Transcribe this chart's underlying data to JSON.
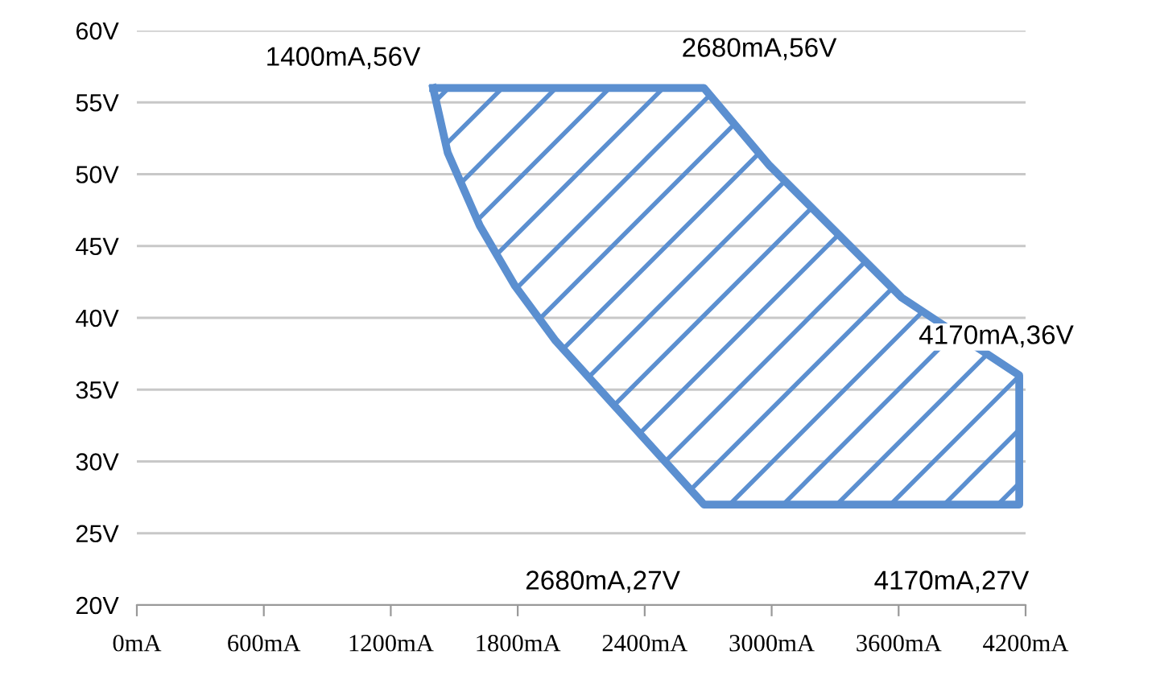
{
  "chart_data": {
    "type": "area",
    "x": [
      1400,
      2680,
      2990,
      3615,
      4170,
      4170,
      2680,
      1979,
      1788,
      1621,
      1469,
      1400
    ],
    "series": [
      {
        "color": "#5b8fd0",
        "values": [
          56,
          56,
          50.6,
          41.4,
          36,
          27,
          27,
          38.4,
          42.2,
          46.4,
          51.5,
          56
        ]
      }
    ],
    "xlim": [
      0,
      4200
    ],
    "xticks": [
      {
        "value": 0,
        "label": "0mA"
      },
      {
        "value": 600,
        "label": "600mA"
      },
      {
        "value": 1200,
        "label": "1200mA"
      },
      {
        "value": 1800,
        "label": "1800mA"
      },
      {
        "value": 2400,
        "label": "2400mA"
      },
      {
        "value": 3000,
        "label": "3000mA"
      },
      {
        "value": 3600,
        "label": "3600mA"
      },
      {
        "value": 4200,
        "label": "4200mA"
      }
    ],
    "ylim": [
      20,
      60
    ],
    "yticks": [
      {
        "value": 20,
        "label": "20V"
      },
      {
        "value": 25,
        "label": "25V"
      },
      {
        "value": 30,
        "label": "30V"
      },
      {
        "value": 35,
        "label": "35V"
      },
      {
        "value": 40,
        "label": "40V"
      },
      {
        "value": 45,
        "label": "45V"
      },
      {
        "value": 50,
        "label": "50V"
      },
      {
        "value": 55,
        "label": "55V"
      },
      {
        "value": 60,
        "label": "60V"
      }
    ],
    "grid": "y",
    "annotations": [
      {
        "text": "1400mA,56V",
        "x": 1400,
        "y": 56
      },
      {
        "text": "2680mA,56V",
        "x": 2680,
        "y": 56
      },
      {
        "text": "4170mA,36V",
        "x": 4170,
        "y": 36
      },
      {
        "text": "2680mA,27V",
        "x": 2680,
        "y": 27
      },
      {
        "text": "4170mA,27V",
        "x": 4170,
        "y": 27
      }
    ]
  }
}
